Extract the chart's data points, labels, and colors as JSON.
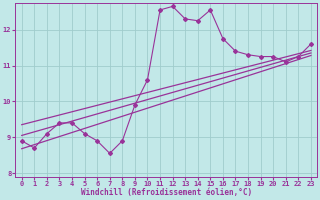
{
  "xlabel": "Windchill (Refroidissement éolien,°C)",
  "background_color": "#c2e8e8",
  "grid_color": "#a0cccc",
  "line_color": "#993399",
  "xlim": [
    -0.5,
    23.5
  ],
  "ylim": [
    7.9,
    12.75
  ],
  "yticks": [
    8,
    9,
    10,
    11,
    12
  ],
  "xticks": [
    0,
    1,
    2,
    3,
    4,
    5,
    6,
    7,
    8,
    9,
    10,
    11,
    12,
    13,
    14,
    15,
    16,
    17,
    18,
    19,
    20,
    21,
    22,
    23
  ],
  "data_x": [
    0,
    1,
    2,
    3,
    4,
    5,
    6,
    7,
    8,
    9,
    10,
    11,
    12,
    13,
    14,
    15,
    16,
    17,
    18,
    19,
    20,
    21,
    22,
    23
  ],
  "data_y": [
    8.9,
    8.7,
    9.1,
    9.4,
    9.4,
    9.1,
    8.9,
    8.55,
    8.9,
    9.9,
    10.6,
    12.55,
    12.65,
    12.3,
    12.25,
    12.55,
    11.75,
    11.4,
    11.3,
    11.25,
    11.25,
    11.1,
    11.25,
    11.6
  ],
  "reg_line1_pts": [
    [
      0,
      8.68
    ],
    [
      23,
      11.28
    ]
  ],
  "reg_line2_pts": [
    [
      0,
      9.05
    ],
    [
      23,
      11.35
    ]
  ],
  "reg_line3_pts": [
    [
      0,
      9.35
    ],
    [
      23,
      11.42
    ]
  ]
}
